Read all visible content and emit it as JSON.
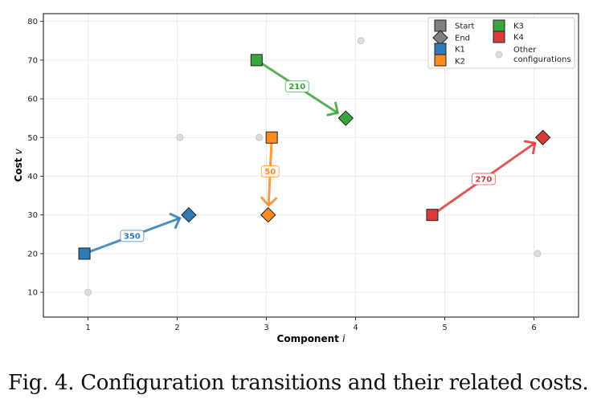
{
  "caption": "Fig. 4. Configuration transitions and their related costs.",
  "chart_data": {
    "type": "scatter",
    "title": "",
    "xlabel": "Component i",
    "xlabel_main": "Component",
    "xlabel_var": "i",
    "ylabel_main": "Cost",
    "ylabel_var": "v",
    "xlim": [
      0.5,
      6.5
    ],
    "ylim": [
      3.6,
      82
    ],
    "xticks": [
      1,
      2,
      3,
      4,
      5,
      6
    ],
    "yticks": [
      10,
      20,
      30,
      40,
      50,
      60,
      70,
      80
    ],
    "grid": true,
    "legend_placement": "top-right",
    "legend": {
      "start": "Start",
      "end": "End",
      "other_line1": "Other",
      "other_line2": "configurations"
    },
    "transitions": [
      {
        "name": "K1",
        "color": "#2e7bb7",
        "start": [
          0.96,
          20
        ],
        "end": [
          2.13,
          30
        ],
        "cost": "350"
      },
      {
        "name": "K2",
        "color": "#ff8a1f",
        "start": [
          3.06,
          50
        ],
        "end": [
          3.02,
          30
        ],
        "cost": "50"
      },
      {
        "name": "K3",
        "color": "#3aa53a",
        "start": [
          2.89,
          70
        ],
        "end": [
          3.89,
          55
        ],
        "cost": "210"
      },
      {
        "name": "K4",
        "color": "#d93a3a",
        "start": [
          4.86,
          30
        ],
        "end": [
          6.1,
          50
        ],
        "cost": "270"
      }
    ],
    "other_configurations": [
      [
        1.0,
        10
      ],
      [
        2.03,
        50
      ],
      [
        2.92,
        50
      ],
      [
        4.06,
        75
      ],
      [
        6.04,
        20
      ]
    ]
  }
}
